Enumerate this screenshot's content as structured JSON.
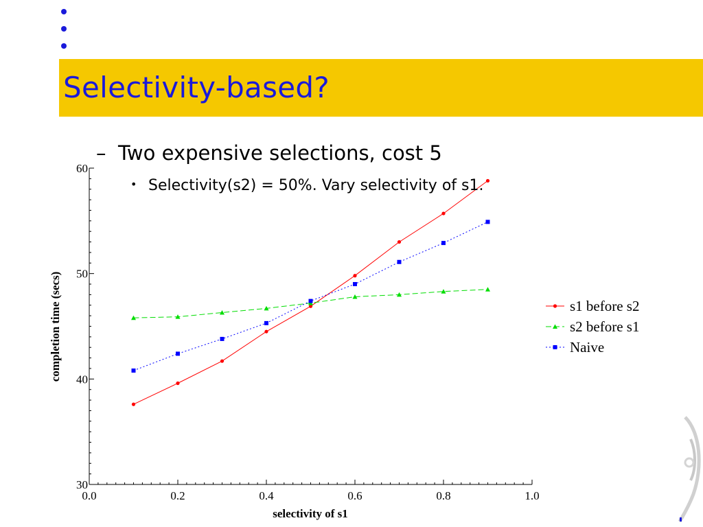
{
  "slide": {
    "title": "Selectivity-based?",
    "bullet_level1": "Two expensive selections, cost 5",
    "bullet_level1_marker": "–",
    "bullet_level2": "Selectivity(s2) = 50%.  Vary selectivity of s1.",
    "bullet_level2_marker": "•"
  },
  "colors": {
    "title_text": "#1a1adb",
    "title_bar": "#f5c800",
    "decor_dots": "#1a1adb"
  },
  "chart_data": {
    "type": "line",
    "title": "",
    "xlabel": "selectivity of s1",
    "ylabel": "completion time (secs)",
    "xlim": [
      0.0,
      1.0
    ],
    "ylim": [
      30,
      60
    ],
    "x_ticks": [
      "0.0",
      "0.2",
      "0.4",
      "0.6",
      "0.8",
      "1.0"
    ],
    "y_ticks": [
      "30",
      "40",
      "50",
      "60"
    ],
    "grid": false,
    "legend_position": "right",
    "x": [
      0.1,
      0.2,
      0.3,
      0.4,
      0.5,
      0.6,
      0.7,
      0.8,
      0.9
    ],
    "series": [
      {
        "name": "s1 before s2",
        "color": "#ff0000",
        "line_style": "solid",
        "marker": "circle",
        "values": [
          37.6,
          39.6,
          41.7,
          44.5,
          46.9,
          49.8,
          53.0,
          55.7,
          58.8
        ]
      },
      {
        "name": "s2 before s1",
        "color": "#00dd00",
        "line_style": "dashed",
        "marker": "triangle",
        "values": [
          45.8,
          45.9,
          46.3,
          46.7,
          47.2,
          47.8,
          48.0,
          48.3,
          48.5
        ]
      },
      {
        "name": "Naive",
        "color": "#0000ff",
        "line_style": "dotted",
        "marker": "square",
        "values": [
          40.8,
          42.4,
          43.8,
          45.3,
          47.4,
          49.0,
          51.1,
          52.9,
          54.9
        ]
      }
    ]
  }
}
